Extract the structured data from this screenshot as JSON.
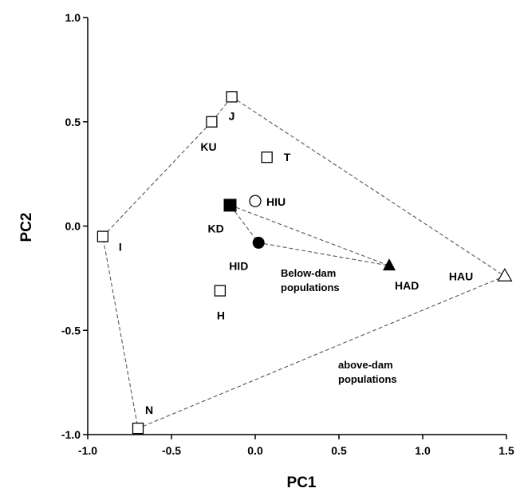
{
  "chart_data": {
    "type": "scatter",
    "xlabel": "PC1",
    "ylabel": "PC2",
    "xlim": [
      -1.0,
      1.5
    ],
    "ylim": [
      -1.0,
      1.0
    ],
    "x_ticks": [
      -1.0,
      -0.5,
      0.0,
      0.5,
      1.0,
      1.5
    ],
    "y_ticks": [
      -1.0,
      -0.5,
      0.0,
      0.5,
      1.0
    ],
    "x_tick_labels": [
      "-1.0",
      "-0.5",
      "0.0",
      "0.5",
      "1.0",
      "1.5"
    ],
    "y_tick_labels": [
      "-1.0",
      "-0.5",
      "0.0",
      "0.5",
      "1.0"
    ],
    "grid": false,
    "points": [
      {
        "id": "J",
        "label": "J",
        "x": -0.14,
        "y": 0.62,
        "marker": "square-open"
      },
      {
        "id": "KU",
        "label": "KU",
        "x": -0.26,
        "y": 0.5,
        "marker": "square-open"
      },
      {
        "id": "T",
        "label": "T",
        "x": 0.07,
        "y": 0.33,
        "marker": "square-open"
      },
      {
        "id": "I",
        "label": "I",
        "x": -0.91,
        "y": -0.05,
        "marker": "square-open"
      },
      {
        "id": "H",
        "label": "H",
        "x": -0.21,
        "y": -0.31,
        "marker": "square-open"
      },
      {
        "id": "N",
        "label": "N",
        "x": -0.7,
        "y": -0.97,
        "marker": "square-open"
      },
      {
        "id": "KD",
        "label": "KD",
        "x": -0.15,
        "y": 0.1,
        "marker": "square-filled"
      },
      {
        "id": "HIU",
        "label": "HIU",
        "x": 0.0,
        "y": 0.12,
        "marker": "circle-open"
      },
      {
        "id": "HID",
        "label": "HID",
        "x": 0.02,
        "y": -0.08,
        "marker": "circle-filled"
      },
      {
        "id": "HAD",
        "label": "HAD",
        "x": 0.8,
        "y": -0.19,
        "marker": "triangle-filled"
      },
      {
        "id": "HAU",
        "label": "HAU",
        "x": 1.49,
        "y": -0.24,
        "marker": "triangle-open"
      }
    ],
    "hulls": [
      {
        "name": "above-dam",
        "vertices": [
          "J",
          "HAU",
          "N",
          "I",
          "KU",
          "J"
        ]
      },
      {
        "name": "below-dam",
        "vertices": [
          "KD",
          "HAD",
          "HID",
          "KD"
        ]
      }
    ],
    "annotations": [
      {
        "id": "below",
        "lines": [
          "Below-dam",
          "populations"
        ]
      },
      {
        "id": "above",
        "lines": [
          "above-dam",
          "populations"
        ]
      }
    ]
  }
}
